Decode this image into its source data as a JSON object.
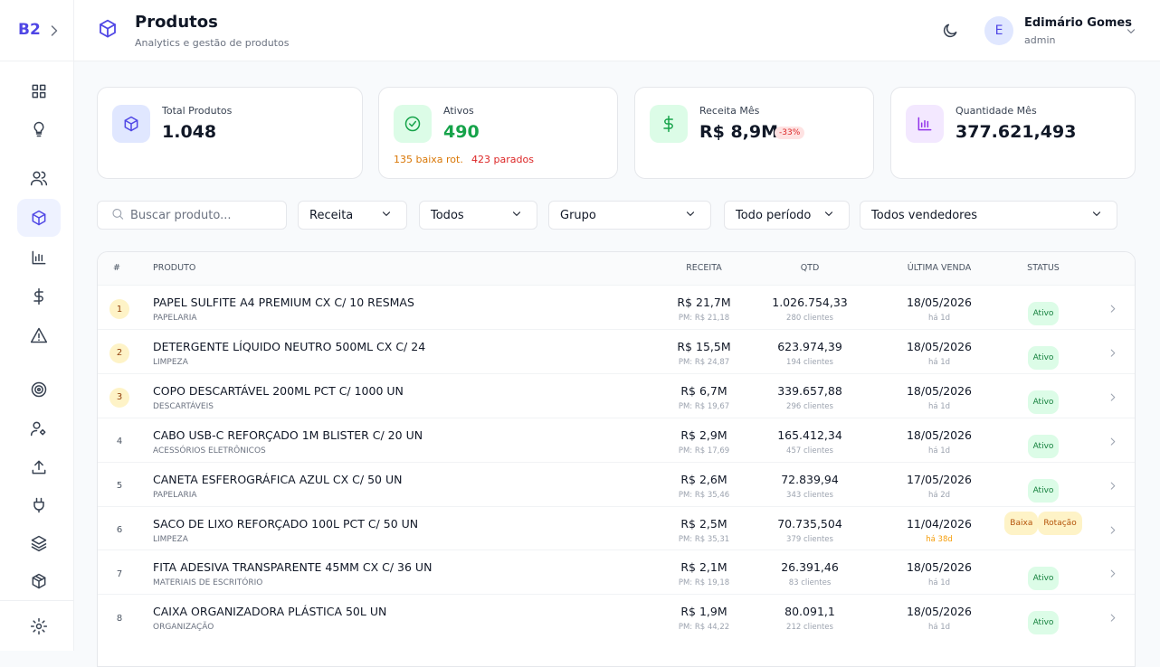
{
  "sidebar": {
    "brand": "B2"
  },
  "header": {
    "title": "Produtos",
    "subtitle": "Analytics e gestão de produtos",
    "avatar": "E",
    "user_name": "Edimário Gomes",
    "user_role": "admin"
  },
  "stats": [
    {
      "label": "Total Produtos",
      "value": "1.048",
      "icon_bg": "#e0e7ff",
      "icon_color": "#4f46e5"
    },
    {
      "label": "Ativos",
      "value": "490",
      "value_color": "#16a34a",
      "icon_bg": "#dcfce7",
      "icon_color": "#16a34a",
      "notes": [
        {
          "text": "135 baixa rot.",
          "color": "#d97706"
        },
        {
          "text": "423 parados",
          "color": "#dc2626"
        }
      ]
    },
    {
      "label": "Receita Mês",
      "value": "R$ 8,9M",
      "badge": "-33%",
      "icon_bg": "#dcfce7",
      "icon_color": "#16a34a"
    },
    {
      "label": "Quantidade Mês",
      "value": "377.621,493",
      "icon_bg": "#f3e8ff",
      "icon_color": "#9333ea"
    }
  ],
  "filters": {
    "search_placeholder": "Buscar produto...",
    "selects": [
      "Receita",
      "Todos",
      "Grupo",
      "Todo período",
      "Todos vendedores"
    ]
  },
  "table": {
    "columns": [
      "#",
      "PRODUTO",
      "RECEITA",
      "QTD",
      "ÚLTIMA VENDA",
      "STATUS"
    ],
    "rows": [
      {
        "rank": 1,
        "name": "PAPEL SULFITE A4 PREMIUM CX C/ 10 RESMAS",
        "group": "PAPELARIA",
        "revenue": "R$ 21,7M",
        "avg_price": "PM: R$ 21,18",
        "qty": "1.026.754,33",
        "clients": "280 clientes",
        "last_sale": "18/05/2026",
        "ago": "há 1d",
        "ago_color": "#9ca3af",
        "status": [
          "Ativo"
        ],
        "status_color": "#15803d",
        "status_bg": "#dcfce7"
      },
      {
        "rank": 2,
        "name": "DETERGENTE LÍQUIDO NEUTRO 500ML CX C/ 24",
        "group": "LIMPEZA",
        "revenue": "R$ 15,5M",
        "avg_price": "PM: R$ 24,87",
        "qty": "623.974,39",
        "clients": "194 clientes",
        "last_sale": "18/05/2026",
        "ago": "há 1d",
        "ago_color": "#9ca3af",
        "status": [
          "Ativo"
        ],
        "status_color": "#15803d",
        "status_bg": "#dcfce7"
      },
      {
        "rank": 3,
        "name": "COPO DESCARTÁVEL 200ML PCT C/ 1000 UN",
        "group": "DESCARTÁVEIS",
        "revenue": "R$ 6,7M",
        "avg_price": "PM: R$ 19,67",
        "qty": "339.657,88",
        "clients": "296 clientes",
        "last_sale": "18/05/2026",
        "ago": "há 1d",
        "ago_color": "#9ca3af",
        "status": [
          "Ativo"
        ],
        "status_color": "#15803d",
        "status_bg": "#dcfce7"
      },
      {
        "rank": 4,
        "name": "CABO USB-C REFORÇADO 1M BLISTER C/ 20 UN",
        "group": "ACESSÓRIOS ELETRÔNICOS",
        "revenue": "R$ 2,9M",
        "avg_price": "PM: R$ 17,69",
        "qty": "165.412,34",
        "clients": "457 clientes",
        "last_sale": "18/05/2026",
        "ago": "há 1d",
        "ago_color": "#9ca3af",
        "status": [
          "Ativo"
        ],
        "status_color": "#15803d",
        "status_bg": "#dcfce7"
      },
      {
        "rank": 5,
        "name": "CANETA ESFEROGRÁFICA AZUL CX C/ 50 UN",
        "group": "PAPELARIA",
        "revenue": "R$ 2,6M",
        "avg_price": "PM: R$ 35,46",
        "qty": "72.839,94",
        "clients": "343 clientes",
        "last_sale": "17/05/2026",
        "ago": "há 2d",
        "ago_color": "#9ca3af",
        "status": [
          "Ativo"
        ],
        "status_color": "#15803d",
        "status_bg": "#dcfce7"
      },
      {
        "rank": 6,
        "name": "SACO DE LIXO REFORÇADO 100L PCT C/ 50 UN",
        "group": "LIMPEZA",
        "revenue": "R$ 2,5M",
        "avg_price": "PM: R$ 35,31",
        "qty": "70.735,504",
        "clients": "379 clientes",
        "last_sale": "11/04/2026",
        "ago": "há 38d",
        "ago_color": "#f59e0b",
        "status": [
          "Baixa",
          "Rotação"
        ],
        "status_color": "#b45309",
        "status_bg": "#fef3c7"
      },
      {
        "rank": 7,
        "name": "FITA ADESIVA TRANSPARENTE 45MM CX C/ 36 UN",
        "group": "MATERIAIS DE ESCRITÓRIO",
        "revenue": "R$ 2,1M",
        "avg_price": "PM: R$ 19,18",
        "qty": "26.391,46",
        "clients": "83 clientes",
        "last_sale": "18/05/2026",
        "ago": "há 1d",
        "ago_color": "#9ca3af",
        "status": [
          "Ativo"
        ],
        "status_color": "#15803d",
        "status_bg": "#dcfce7"
      },
      {
        "rank": 8,
        "name": "CAIXA ORGANIZADORA PLÁSTICA 50L UN",
        "group": "ORGANIZAÇÃO",
        "revenue": "R$ 1,9M",
        "avg_price": "PM: R$ 44,22",
        "qty": "80.091,1",
        "clients": "212 clientes",
        "last_sale": "18/05/2026",
        "ago": "há 1d",
        "ago_color": "#9ca3af",
        "status": [
          "Ativo"
        ],
        "status_color": "#15803d",
        "status_bg": "#dcfce7"
      }
    ]
  }
}
